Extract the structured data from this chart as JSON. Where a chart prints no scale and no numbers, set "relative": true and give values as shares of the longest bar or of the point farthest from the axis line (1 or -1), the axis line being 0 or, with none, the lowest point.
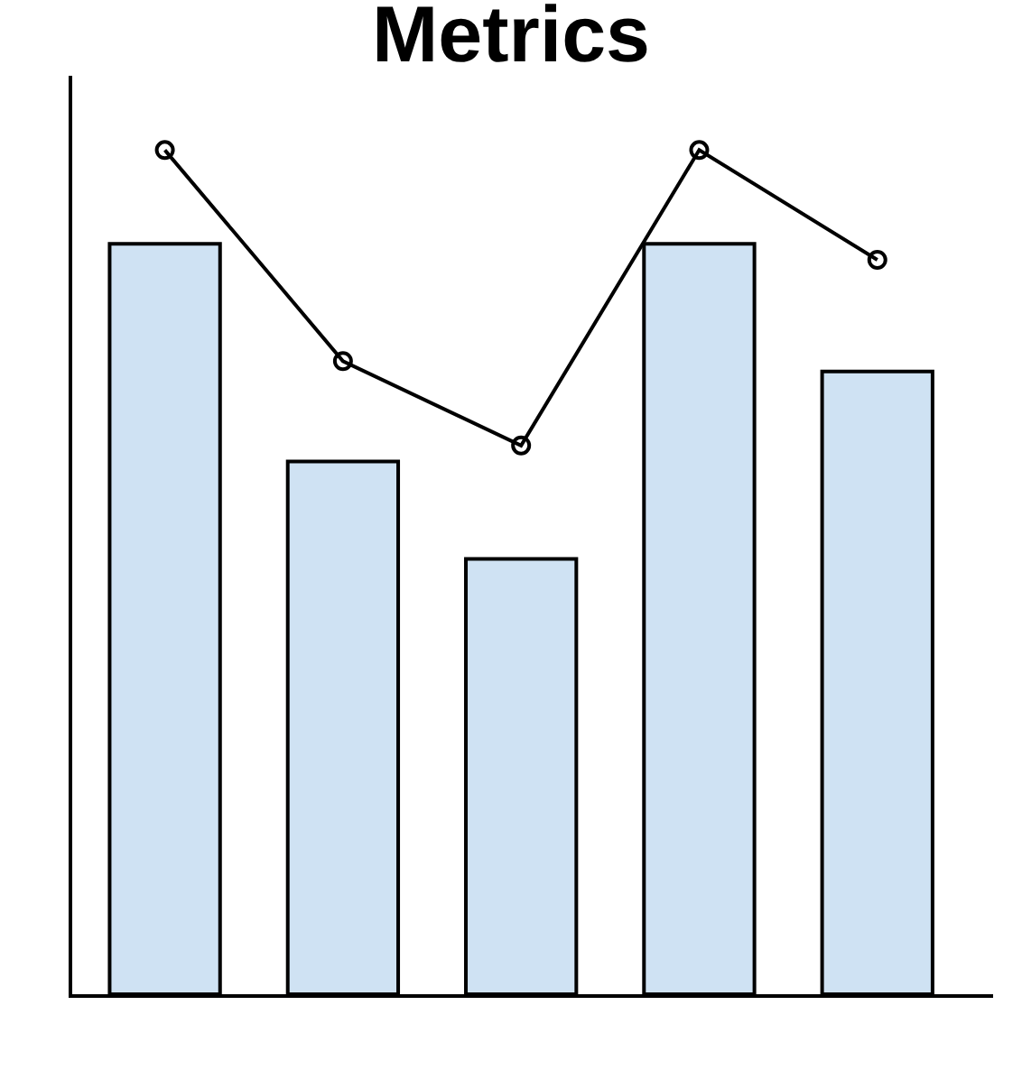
{
  "chart_data": [
    {
      "type": "bar",
      "title": "Metrics",
      "relative": true,
      "categories": [
        null,
        null,
        null,
        null,
        null
      ],
      "color": "#cfe2f3",
      "values": [
        1.0,
        0.71,
        0.58,
        1.0,
        0.83
      ]
    },
    {
      "type": "line",
      "relative": true,
      "categories": [
        null,
        null,
        null,
        null,
        null
      ],
      "color": "#000000",
      "values": [
        1.0,
        0.75,
        0.65,
        1.0,
        0.87
      ],
      "marker": "circle"
    }
  ]
}
